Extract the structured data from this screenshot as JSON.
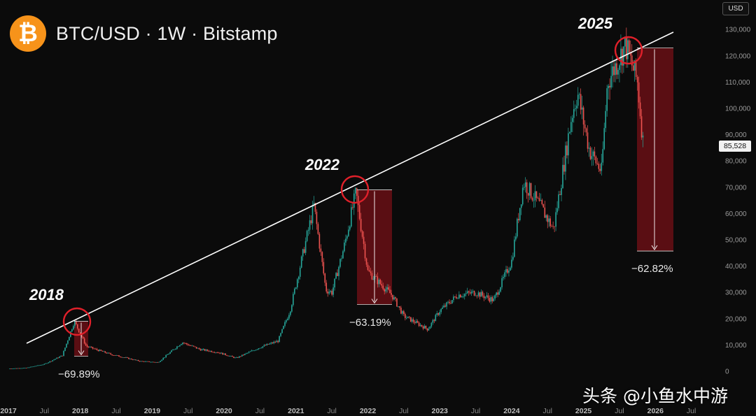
{
  "header": {
    "logo_symbol": "₿",
    "logo_icon": "bitcoin-logo-icon",
    "title": "BTC/USD · 1W · Bitstamp"
  },
  "axis": {
    "currency_label": "USD",
    "last_price_label": "85,528"
  },
  "watermark": "头条 @小鱼水中游",
  "colors": {
    "background": "#0b0b0b",
    "up_candle": "#26a69a",
    "down_candle": "#ef5350",
    "trendline": "#ffffff",
    "highlight_circle": "#e0202a",
    "drawdown_box": "#6b0f15",
    "logo": "#f7931a"
  },
  "chart_data": {
    "type": "line",
    "title": "BTC/USD · 1W · Bitstamp",
    "xlabel": "",
    "ylabel": "USD",
    "ylim": [
      0,
      130000
    ],
    "grid": false,
    "x_ticks": [
      "2017",
      "Jul",
      "2018",
      "Jul",
      "2019",
      "Jul",
      "2020",
      "Jul",
      "2021",
      "Jul",
      "2022",
      "Jul",
      "2023",
      "Jul",
      "2024",
      "Jul",
      "2025",
      "Jul",
      "2026",
      "Jul"
    ],
    "y_ticks": [
      0,
      10000,
      20000,
      30000,
      40000,
      50000,
      60000,
      70000,
      80000,
      90000,
      100000,
      110000,
      120000,
      130000
    ],
    "y_tick_labels": [
      "0",
      "10,000",
      "20,000",
      "30,000",
      "40,000",
      "50,000",
      "60,000",
      "70,000",
      "80,000",
      "90,000",
      "100,000",
      "110,000",
      "120,000",
      "130,000"
    ],
    "series": [
      {
        "x": [
          "2017-01",
          "2017-04",
          "2017-07",
          "2017-10",
          "2017-12",
          "2018-02",
          "2018-06",
          "2018-11",
          "2019-02",
          "2019-06",
          "2019-09",
          "2019-12",
          "2020-03",
          "2020-07",
          "2020-10",
          "2020-12",
          "2021-01",
          "2021-04",
          "2021-06",
          "2021-07",
          "2021-09",
          "2021-11",
          "2022-01",
          "2022-05",
          "2022-07",
          "2022-11",
          "2023-01",
          "2023-04",
          "2023-07",
          "2023-10",
          "2024-01",
          "2024-03",
          "2024-06",
          "2024-08",
          "2024-11",
          "2024-12",
          "2025-02",
          "2025-04",
          "2025-05",
          "2025-08",
          "2025-10",
          "2025-11"
        ],
        "values": [
          1000,
          1300,
          2700,
          6000,
          19000,
          9500,
          6500,
          3800,
          3400,
          11000,
          8300,
          7200,
          5000,
          9100,
          11500,
          23000,
          33000,
          63000,
          31000,
          30000,
          47000,
          68000,
          38000,
          29000,
          21000,
          16000,
          23000,
          29000,
          30000,
          27000,
          42000,
          72000,
          62000,
          54000,
          97000,
          106000,
          84000,
          76000,
          110000,
          124000,
          110000,
          85528
        ]
      }
    ],
    "annotations": [
      {
        "label": "2018",
        "peak": 19000,
        "drawdown": "−69.89%"
      },
      {
        "label": "2022",
        "peak": 69000,
        "drawdown": "−63.19%"
      },
      {
        "label": "2025",
        "peak": 123000,
        "drawdown": "−62.82%"
      }
    ],
    "last_price": 85528
  }
}
